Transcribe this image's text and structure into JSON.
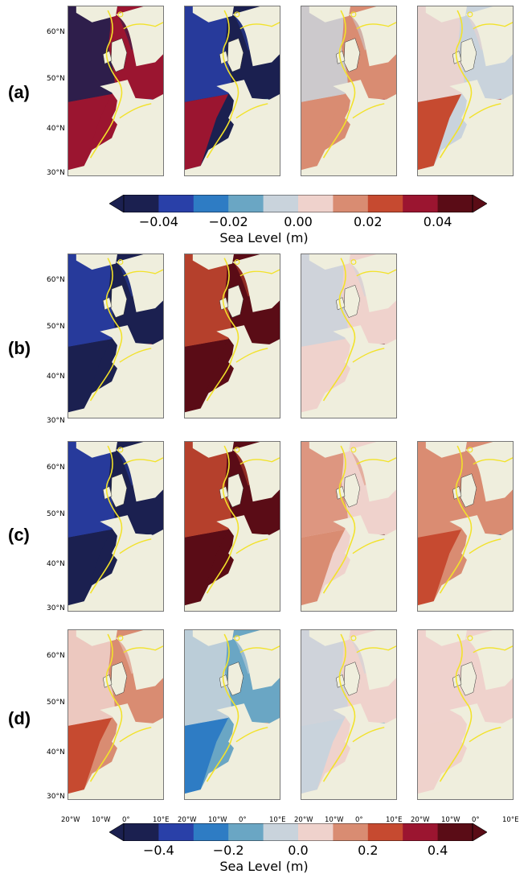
{
  "rows": [
    {
      "label": "(a)",
      "panels": 4,
      "style": "mixed"
    },
    {
      "label": "(b)",
      "panels": 3,
      "style": "large"
    },
    {
      "label": "(c)",
      "panels": 4,
      "style": "large"
    },
    {
      "label": "(d)",
      "panels": 4,
      "style": "mild"
    }
  ],
  "lat_labels": [
    "60°N",
    "50°N",
    "40°N",
    "30°N"
  ],
  "lon_labels": [
    "20°W",
    "10°W",
    "0°",
    "10°E"
  ],
  "colorbar_top": {
    "ticks": [
      "−0.04",
      "−0.02",
      "0.00",
      "0.02",
      "0.04"
    ],
    "title": "Sea Level (m)"
  },
  "colorbar_bottom": {
    "ticks": [
      "−0.4",
      "−0.2",
      "0.0",
      "0.2",
      "0.4"
    ],
    "title": "Sea Level (m)"
  },
  "colors": {
    "palette": [
      "#1b2050",
      "#2940a8",
      "#2e7cc4",
      "#6aa6c4",
      "#c9d3dc",
      "#efd2cc",
      "#d98c72",
      "#c64a30",
      "#9b1530",
      "#5a0c16"
    ],
    "land": "#efeedd",
    "coast_contour": "#f2e22a"
  }
}
